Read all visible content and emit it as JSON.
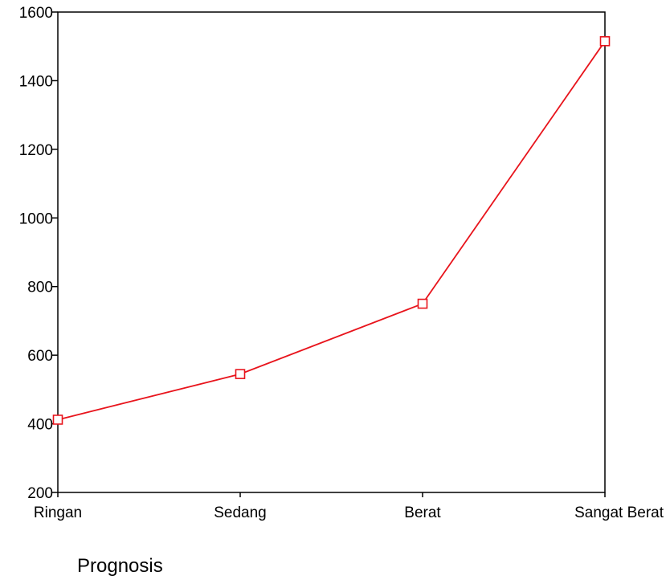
{
  "chart_data": {
    "type": "line",
    "categories": [
      "Ringan",
      "Sedang",
      "Berat",
      "Sangat Berat"
    ],
    "series": [
      {
        "values": [
          412,
          545,
          750,
          1515
        ],
        "color": "#e8141c",
        "marker": "square"
      }
    ],
    "xlabel": "Prognosis",
    "ylim": [
      200,
      1600
    ],
    "yticks": [
      200,
      400,
      600,
      800,
      1000,
      1200,
      1400,
      1600
    ],
    "grid": false,
    "legend": "none"
  }
}
